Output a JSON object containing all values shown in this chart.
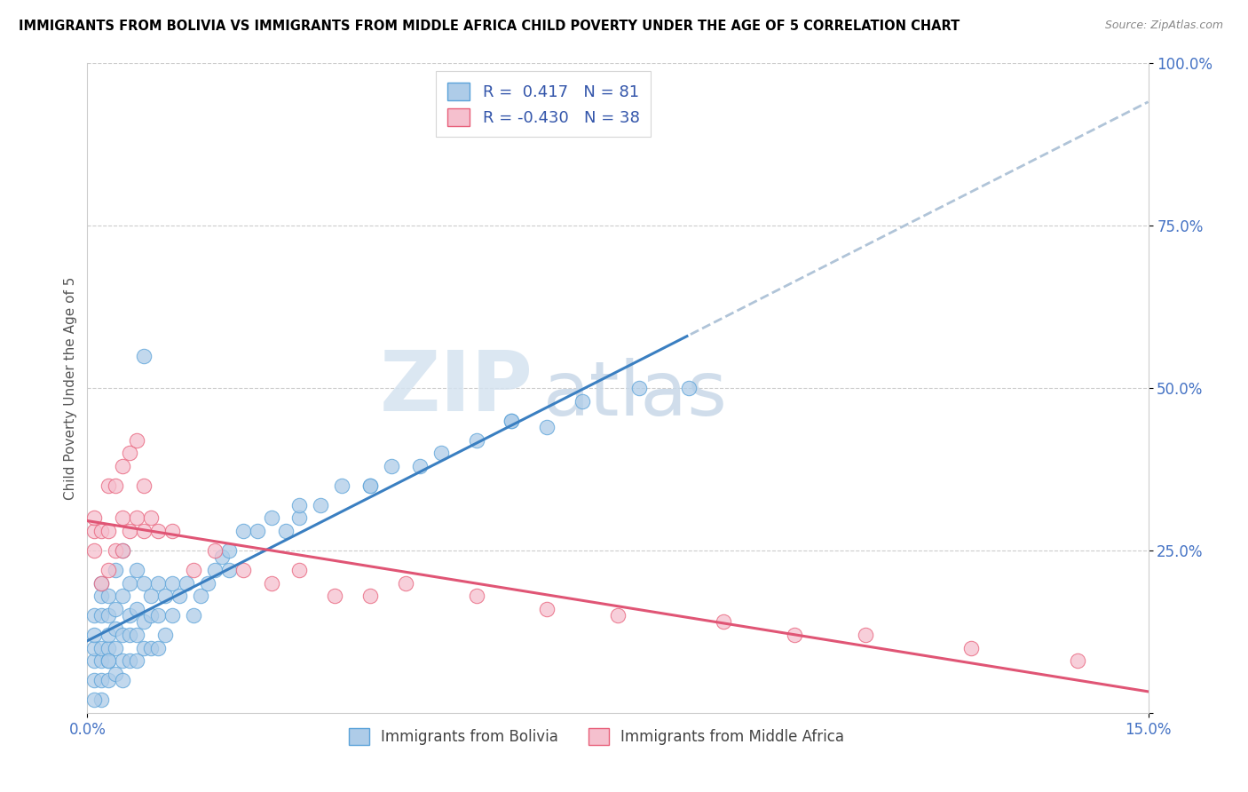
{
  "title": "IMMIGRANTS FROM BOLIVIA VS IMMIGRANTS FROM MIDDLE AFRICA CHILD POVERTY UNDER THE AGE OF 5 CORRELATION CHART",
  "source": "Source: ZipAtlas.com",
  "ylabel": "Child Poverty Under the Age of 5",
  "xlim": [
    0.0,
    0.15
  ],
  "ylim": [
    0.0,
    1.0
  ],
  "bolivia_R": 0.417,
  "bolivia_N": 81,
  "middle_africa_R": -0.43,
  "middle_africa_N": 38,
  "bolivia_color": "#aecce8",
  "bolivia_edge_color": "#5ba3d9",
  "middle_africa_color": "#f5c0ce",
  "middle_africa_edge_color": "#e8607a",
  "bolivia_line_color": "#3a7fc1",
  "middle_africa_line_color": "#e05575",
  "dash_color": "#b0c4d8",
  "watermark_zip": "ZIP",
  "watermark_atlas": "atlas",
  "legend_label_bolivia": "Immigrants from Bolivia",
  "legend_label_middle_africa": "Immigrants from Middle Africa",
  "bolivia_x": [
    0.001,
    0.001,
    0.001,
    0.001,
    0.001,
    0.002,
    0.002,
    0.002,
    0.002,
    0.002,
    0.002,
    0.003,
    0.003,
    0.003,
    0.003,
    0.003,
    0.003,
    0.004,
    0.004,
    0.004,
    0.004,
    0.004,
    0.005,
    0.005,
    0.005,
    0.005,
    0.005,
    0.006,
    0.006,
    0.006,
    0.006,
    0.007,
    0.007,
    0.007,
    0.007,
    0.008,
    0.008,
    0.008,
    0.009,
    0.009,
    0.009,
    0.01,
    0.01,
    0.01,
    0.011,
    0.011,
    0.012,
    0.012,
    0.013,
    0.014,
    0.015,
    0.016,
    0.017,
    0.018,
    0.019,
    0.02,
    0.022,
    0.024,
    0.026,
    0.028,
    0.03,
    0.033,
    0.036,
    0.04,
    0.043,
    0.047,
    0.05,
    0.055,
    0.06,
    0.065,
    0.07,
    0.078,
    0.085,
    0.06,
    0.03,
    0.02,
    0.04,
    0.008,
    0.003,
    0.002,
    0.001
  ],
  "bolivia_y": [
    0.05,
    0.08,
    0.1,
    0.12,
    0.15,
    0.05,
    0.08,
    0.1,
    0.15,
    0.18,
    0.2,
    0.05,
    0.08,
    0.1,
    0.12,
    0.15,
    0.18,
    0.06,
    0.1,
    0.13,
    0.16,
    0.22,
    0.05,
    0.08,
    0.12,
    0.18,
    0.25,
    0.08,
    0.12,
    0.15,
    0.2,
    0.08,
    0.12,
    0.16,
    0.22,
    0.1,
    0.14,
    0.2,
    0.1,
    0.15,
    0.18,
    0.1,
    0.15,
    0.2,
    0.12,
    0.18,
    0.15,
    0.2,
    0.18,
    0.2,
    0.15,
    0.18,
    0.2,
    0.22,
    0.24,
    0.25,
    0.28,
    0.28,
    0.3,
    0.28,
    0.3,
    0.32,
    0.35,
    0.35,
    0.38,
    0.38,
    0.4,
    0.42,
    0.45,
    0.44,
    0.48,
    0.5,
    0.5,
    0.45,
    0.32,
    0.22,
    0.35,
    0.55,
    0.08,
    0.02,
    0.02
  ],
  "middle_africa_x": [
    0.001,
    0.001,
    0.001,
    0.002,
    0.002,
    0.003,
    0.003,
    0.003,
    0.004,
    0.004,
    0.005,
    0.005,
    0.005,
    0.006,
    0.006,
    0.007,
    0.007,
    0.008,
    0.008,
    0.009,
    0.01,
    0.012,
    0.015,
    0.018,
    0.022,
    0.026,
    0.03,
    0.035,
    0.04,
    0.045,
    0.055,
    0.065,
    0.075,
    0.09,
    0.1,
    0.11,
    0.125,
    0.14
  ],
  "middle_africa_y": [
    0.25,
    0.28,
    0.3,
    0.2,
    0.28,
    0.22,
    0.28,
    0.35,
    0.25,
    0.35,
    0.25,
    0.3,
    0.38,
    0.28,
    0.4,
    0.3,
    0.42,
    0.28,
    0.35,
    0.3,
    0.28,
    0.28,
    0.22,
    0.25,
    0.22,
    0.2,
    0.22,
    0.18,
    0.18,
    0.2,
    0.18,
    0.16,
    0.15,
    0.14,
    0.12,
    0.12,
    0.1,
    0.08
  ]
}
